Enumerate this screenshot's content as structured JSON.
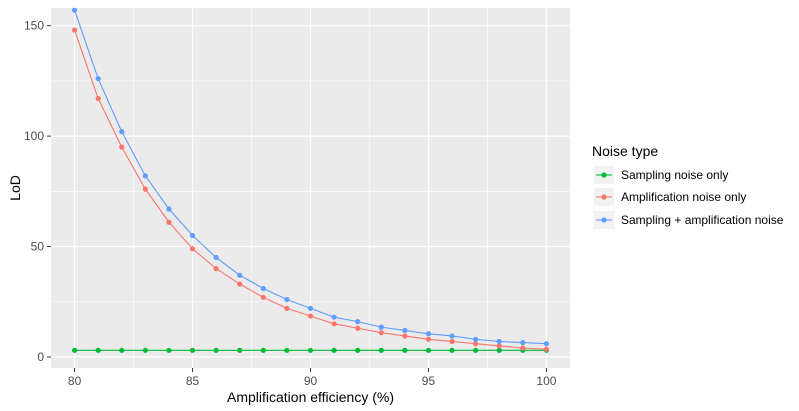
{
  "chart_data": {
    "type": "line",
    "title": "",
    "xlabel": "Amplification efficiency (%)",
    "ylabel": "LoD",
    "xlim": [
      79,
      101
    ],
    "ylim": [
      -5,
      158
    ],
    "xticks": [
      80,
      85,
      90,
      95,
      100
    ],
    "yticks": [
      0,
      50,
      100,
      150
    ],
    "grid": true,
    "legend": {
      "title": "Noise type",
      "placement": "right"
    },
    "x": [
      80,
      81,
      82,
      83,
      84,
      85,
      86,
      87,
      88,
      89,
      90,
      91,
      92,
      93,
      94,
      95,
      96,
      97,
      98,
      99,
      100
    ],
    "series": [
      {
        "name": "Sampling noise only",
        "color": "#00ba38",
        "values": [
          3,
          3,
          3,
          3,
          3,
          3,
          3,
          3,
          3,
          3,
          3,
          3,
          3,
          3,
          3,
          3,
          3,
          3,
          3,
          3,
          3
        ]
      },
      {
        "name": "Amplification noise only",
        "color": "#f8766d",
        "values": [
          148,
          117,
          95,
          76,
          61,
          49,
          40,
          33,
          27,
          22,
          18.5,
          15,
          13,
          11,
          9.5,
          8,
          7,
          6,
          5,
          4,
          3.5
        ]
      },
      {
        "name": "Sampling + amplification noise",
        "color": "#619cff",
        "values": [
          157,
          126,
          102,
          82,
          67,
          55,
          45,
          37,
          31,
          26,
          22,
          18,
          16,
          13.5,
          12,
          10.5,
          9.5,
          8,
          7,
          6.5,
          6
        ]
      }
    ]
  }
}
